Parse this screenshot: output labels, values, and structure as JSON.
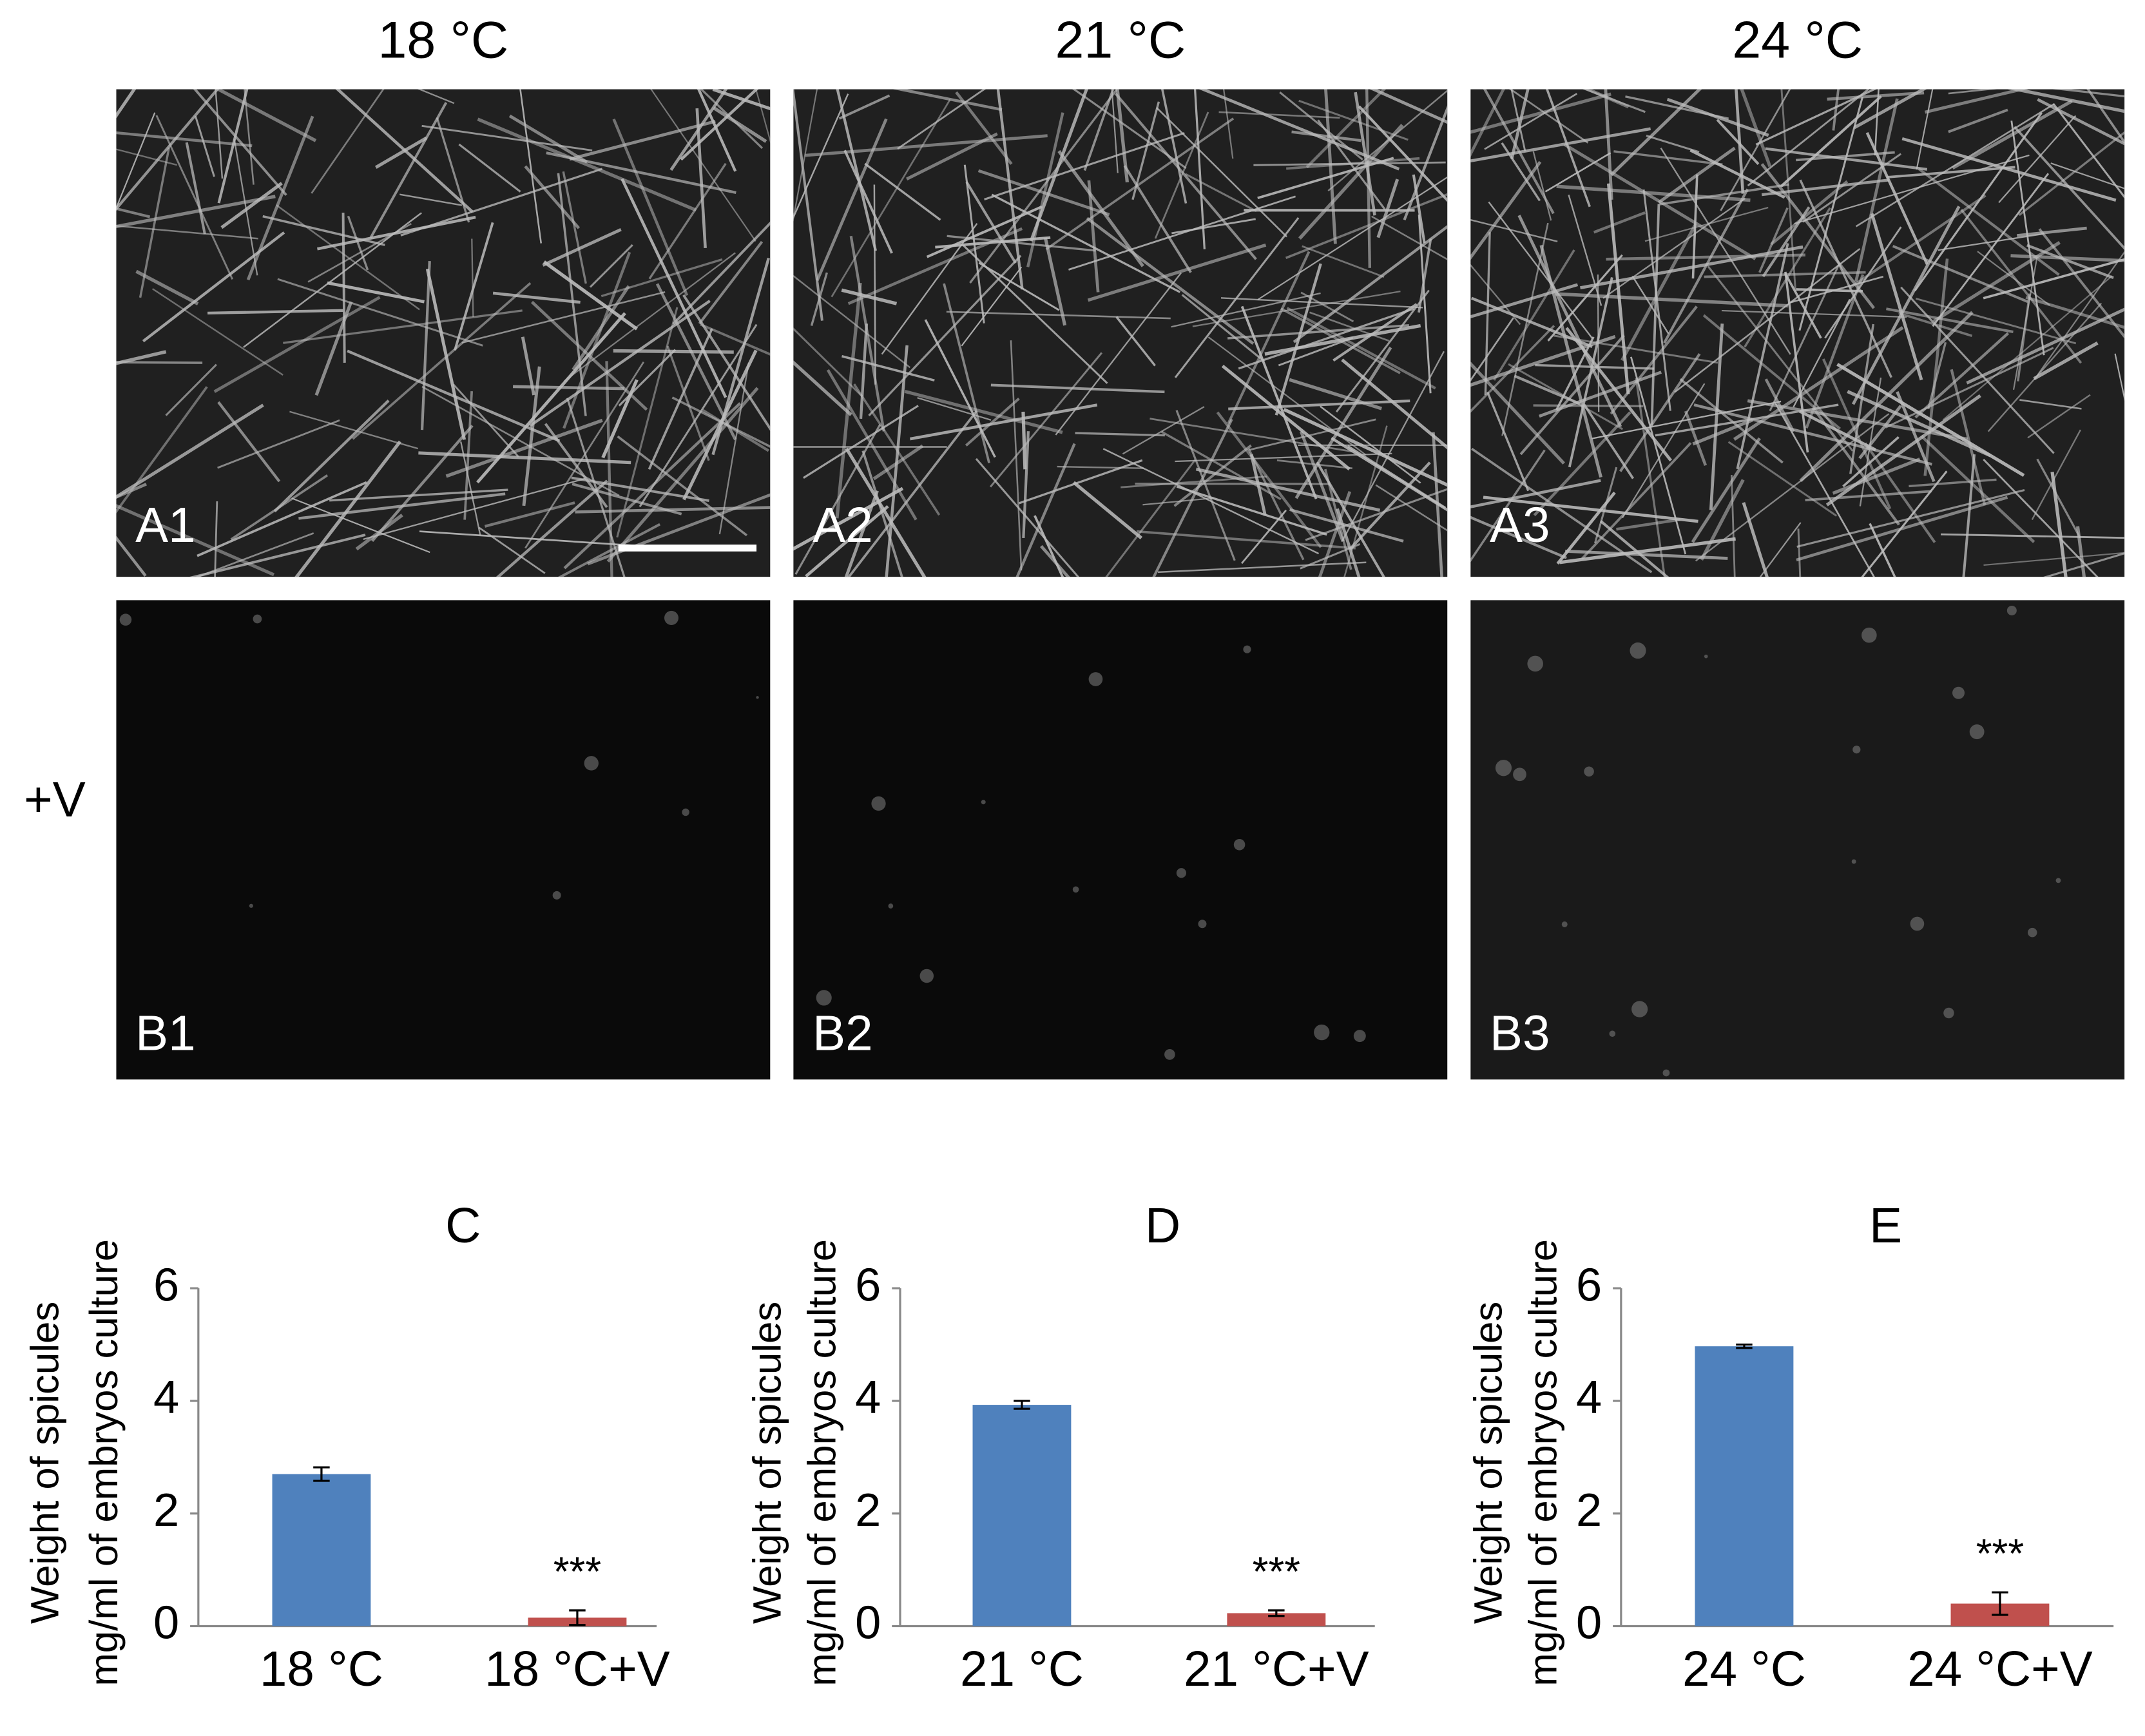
{
  "panels": {
    "columns": [
      "18 °C",
      "21 °C",
      "24 °C"
    ],
    "row_label": "+V",
    "labels": [
      "A1",
      "A2",
      "A3",
      "B1",
      "B2",
      "B3"
    ]
  },
  "chart_data": [
    {
      "type": "bar",
      "title": "C",
      "y_label": [
        "Weight of spicules",
        "mg/ml of embryos culture"
      ],
      "categories": [
        "18 °C",
        "18 °C+V"
      ],
      "values": [
        2.7,
        0.15
      ],
      "errors": [
        0.12,
        0.13
      ],
      "colors": [
        "#4f81bd",
        "#c0504d"
      ],
      "ylim": [
        0,
        6
      ],
      "yticks": [
        0,
        2,
        4,
        6
      ],
      "annotation": "***"
    },
    {
      "type": "bar",
      "title": "D",
      "y_label": [
        "Weight of spicules",
        "mg/ml of embryos culture"
      ],
      "categories": [
        "21 °C",
        "21 °C+V"
      ],
      "values": [
        3.93,
        0.23
      ],
      "errors": [
        0.07,
        0.05
      ],
      "colors": [
        "#4f81bd",
        "#c0504d"
      ],
      "ylim": [
        0,
        6
      ],
      "yticks": [
        0,
        2,
        4,
        6
      ],
      "annotation": "***"
    },
    {
      "type": "bar",
      "title": "E",
      "y_label": [
        "Weight of spicules",
        "mg/ml of embryos culture"
      ],
      "categories": [
        "24 °C",
        "24 °C+V"
      ],
      "values": [
        4.97,
        0.4
      ],
      "errors": [
        0.03,
        0.2
      ],
      "colors": [
        "#4f81bd",
        "#c0504d"
      ],
      "ylim": [
        0,
        6
      ],
      "yticks": [
        0,
        2,
        4,
        6
      ],
      "annotation": "***"
    }
  ]
}
